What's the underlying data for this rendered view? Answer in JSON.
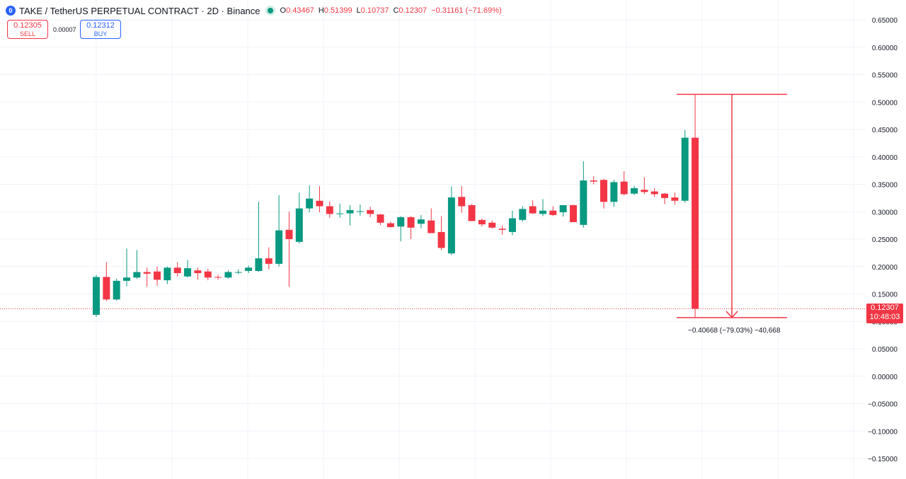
{
  "header": {
    "logo_letter": "0",
    "title": "TAKE / TetherUS PERPETUAL CONTRACT · 2D · Binance",
    "ohlc": {
      "o_label": "O",
      "o_value": "0.43467",
      "h_label": "H",
      "h_value": "0.51399",
      "l_label": "L",
      "l_value": "0.10737",
      "c_label": "C",
      "c_value": "0.12307",
      "change": "−0.31161 (−71.69%)"
    }
  },
  "trade": {
    "sell_price": "0.12305",
    "sell_label": "SELL",
    "spread": "0.00007",
    "buy_price": "0.12312",
    "buy_label": "BUY"
  },
  "price_axis": {
    "ticks": [
      "0.65000",
      "0.60000",
      "0.55000",
      "0.50000",
      "0.45000",
      "0.40000",
      "0.35000",
      "0.30000",
      "0.25000",
      "0.20000",
      "0.15000",
      "0.10000",
      "0.05000",
      "0.00000",
      "−0.05000",
      "−0.10000",
      "−0.15000"
    ]
  },
  "last_price": {
    "price": "0.12307",
    "countdown": "10:48:03"
  },
  "measure": {
    "text": "−0.40668 (−79.03%) −40,668",
    "high": 0.514,
    "low": 0.107
  },
  "colors": {
    "up": "#089981",
    "down": "#f23645",
    "grid": "#f0f3fa"
  },
  "chart_data": {
    "type": "candlestick",
    "y_range": [
      -0.15,
      0.65
    ],
    "candles": [
      {
        "o": 0.112,
        "h": 0.185,
        "l": 0.108,
        "c": 0.181
      },
      {
        "o": 0.181,
        "h": 0.208,
        "l": 0.137,
        "c": 0.14
      },
      {
        "o": 0.14,
        "h": 0.178,
        "l": 0.138,
        "c": 0.174
      },
      {
        "o": 0.174,
        "h": 0.233,
        "l": 0.164,
        "c": 0.18
      },
      {
        "o": 0.18,
        "h": 0.23,
        "l": 0.178,
        "c": 0.19
      },
      {
        "o": 0.19,
        "h": 0.198,
        "l": 0.163,
        "c": 0.187
      },
      {
        "o": 0.191,
        "h": 0.2,
        "l": 0.165,
        "c": 0.176
      },
      {
        "o": 0.175,
        "h": 0.2,
        "l": 0.168,
        "c": 0.198
      },
      {
        "o": 0.198,
        "h": 0.208,
        "l": 0.182,
        "c": 0.188
      },
      {
        "o": 0.182,
        "h": 0.212,
        "l": 0.18,
        "c": 0.197
      },
      {
        "o": 0.193,
        "h": 0.198,
        "l": 0.176,
        "c": 0.188
      },
      {
        "o": 0.191,
        "h": 0.196,
        "l": 0.175,
        "c": 0.18
      },
      {
        "o": 0.181,
        "h": 0.185,
        "l": 0.176,
        "c": 0.18
      },
      {
        "o": 0.18,
        "h": 0.193,
        "l": 0.178,
        "c": 0.19
      },
      {
        "o": 0.19,
        "h": 0.195,
        "l": 0.186,
        "c": 0.19
      },
      {
        "o": 0.192,
        "h": 0.202,
        "l": 0.188,
        "c": 0.198
      },
      {
        "o": 0.192,
        "h": 0.318,
        "l": 0.19,
        "c": 0.215
      },
      {
        "o": 0.215,
        "h": 0.235,
        "l": 0.195,
        "c": 0.205
      },
      {
        "o": 0.205,
        "h": 0.33,
        "l": 0.2,
        "c": 0.266
      },
      {
        "o": 0.267,
        "h": 0.3,
        "l": 0.163,
        "c": 0.25
      },
      {
        "o": 0.245,
        "h": 0.335,
        "l": 0.242,
        "c": 0.306
      },
      {
        "o": 0.306,
        "h": 0.348,
        "l": 0.299,
        "c": 0.324
      },
      {
        "o": 0.32,
        "h": 0.347,
        "l": 0.299,
        "c": 0.31
      },
      {
        "o": 0.31,
        "h": 0.319,
        "l": 0.289,
        "c": 0.296
      },
      {
        "o": 0.297,
        "h": 0.315,
        "l": 0.289,
        "c": 0.297
      },
      {
        "o": 0.297,
        "h": 0.312,
        "l": 0.275,
        "c": 0.303
      },
      {
        "o": 0.3,
        "h": 0.313,
        "l": 0.293,
        "c": 0.301
      },
      {
        "o": 0.303,
        "h": 0.309,
        "l": 0.29,
        "c": 0.296
      },
      {
        "o": 0.295,
        "h": 0.296,
        "l": 0.276,
        "c": 0.28
      },
      {
        "o": 0.279,
        "h": 0.282,
        "l": 0.271,
        "c": 0.272
      },
      {
        "o": 0.273,
        "h": 0.292,
        "l": 0.246,
        "c": 0.29
      },
      {
        "o": 0.29,
        "h": 0.292,
        "l": 0.25,
        "c": 0.271
      },
      {
        "o": 0.278,
        "h": 0.294,
        "l": 0.27,
        "c": 0.286
      },
      {
        "o": 0.284,
        "h": 0.306,
        "l": 0.265,
        "c": 0.261
      },
      {
        "o": 0.263,
        "h": 0.292,
        "l": 0.23,
        "c": 0.234
      },
      {
        "o": 0.224,
        "h": 0.346,
        "l": 0.221,
        "c": 0.326
      },
      {
        "o": 0.327,
        "h": 0.347,
        "l": 0.298,
        "c": 0.31
      },
      {
        "o": 0.312,
        "h": 0.314,
        "l": 0.283,
        "c": 0.283
      },
      {
        "o": 0.285,
        "h": 0.288,
        "l": 0.273,
        "c": 0.277
      },
      {
        "o": 0.28,
        "h": 0.284,
        "l": 0.269,
        "c": 0.271
      },
      {
        "o": 0.269,
        "h": 0.275,
        "l": 0.258,
        "c": 0.267
      },
      {
        "o": 0.263,
        "h": 0.302,
        "l": 0.257,
        "c": 0.288
      },
      {
        "o": 0.285,
        "h": 0.31,
        "l": 0.282,
        "c": 0.305
      },
      {
        "o": 0.31,
        "h": 0.321,
        "l": 0.296,
        "c": 0.297
      },
      {
        "o": 0.296,
        "h": 0.323,
        "l": 0.292,
        "c": 0.302
      },
      {
        "o": 0.302,
        "h": 0.31,
        "l": 0.292,
        "c": 0.294
      },
      {
        "o": 0.299,
        "h": 0.312,
        "l": 0.291,
        "c": 0.312
      },
      {
        "o": 0.312,
        "h": 0.313,
        "l": 0.281,
        "c": 0.281
      },
      {
        "o": 0.276,
        "h": 0.392,
        "l": 0.271,
        "c": 0.357
      },
      {
        "o": 0.357,
        "h": 0.365,
        "l": 0.35,
        "c": 0.355
      },
      {
        "o": 0.358,
        "h": 0.36,
        "l": 0.306,
        "c": 0.318
      },
      {
        "o": 0.318,
        "h": 0.358,
        "l": 0.309,
        "c": 0.354
      },
      {
        "o": 0.355,
        "h": 0.374,
        "l": 0.33,
        "c": 0.332
      },
      {
        "o": 0.333,
        "h": 0.347,
        "l": 0.33,
        "c": 0.343
      },
      {
        "o": 0.34,
        "h": 0.363,
        "l": 0.332,
        "c": 0.336
      },
      {
        "o": 0.337,
        "h": 0.343,
        "l": 0.327,
        "c": 0.332
      },
      {
        "o": 0.333,
        "h": 0.334,
        "l": 0.314,
        "c": 0.325
      },
      {
        "o": 0.326,
        "h": 0.335,
        "l": 0.313,
        "c": 0.32
      },
      {
        "o": 0.32,
        "h": 0.449,
        "l": 0.316,
        "c": 0.435
      },
      {
        "o": 0.435,
        "h": 0.514,
        "l": 0.107,
        "c": 0.123
      }
    ]
  }
}
